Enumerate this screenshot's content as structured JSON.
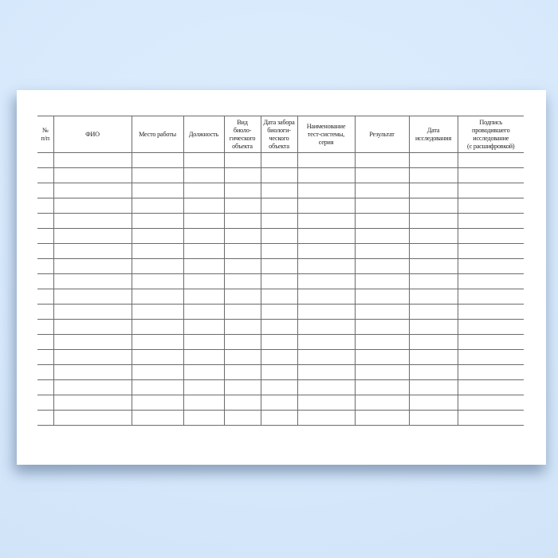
{
  "table": {
    "columns": [
      {
        "id": "row-number",
        "label": "№\nп/п"
      },
      {
        "id": "fio",
        "label": "ФИО"
      },
      {
        "id": "workplace",
        "label": "Место работы"
      },
      {
        "id": "position",
        "label": "Должность"
      },
      {
        "id": "bio-object-type",
        "label": "Вид\nбиоло-\nгического\nобъекта"
      },
      {
        "id": "sampling-date",
        "label": "Дата забора\nбиологи-\nческого\nобъекта"
      },
      {
        "id": "test-system",
        "label": "Наименование\nтест-системы,\nсерия"
      },
      {
        "id": "result",
        "label": "Результат"
      },
      {
        "id": "research-date",
        "label": "Дата\nисследования"
      },
      {
        "id": "signature",
        "label": "Подпись\nпроводившего\nисследование\n(с расшифровкой)"
      }
    ],
    "empty_row_count": 18
  },
  "colors": {
    "background_top": "#ddeefd",
    "background_edge": "#cde1f6",
    "page": "#ffffff",
    "grid_line": "#6b6b6b",
    "text": "#1f1f1f"
  }
}
